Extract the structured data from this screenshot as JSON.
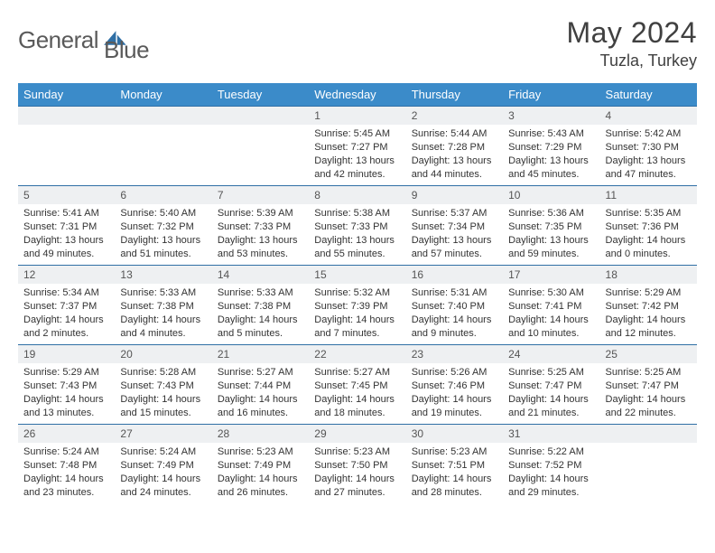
{
  "brand": {
    "part1": "General",
    "part2": "Blue"
  },
  "title": "May 2024",
  "location": "Tuzla, Turkey",
  "weekday_headers": [
    "Sunday",
    "Monday",
    "Tuesday",
    "Wednesday",
    "Thursday",
    "Friday",
    "Saturday"
  ],
  "colors": {
    "header_bg": "#3b8bc9",
    "header_text": "#ffffff",
    "daybar_bg": "#eef0f2",
    "daybar_border": "#2f6fa5",
    "logo_blue": "#2f6fa5"
  },
  "weeks": [
    [
      {
        "n": "",
        "sunrise": "",
        "sunset": "",
        "daylight": ""
      },
      {
        "n": "",
        "sunrise": "",
        "sunset": "",
        "daylight": ""
      },
      {
        "n": "",
        "sunrise": "",
        "sunset": "",
        "daylight": ""
      },
      {
        "n": "1",
        "sunrise": "Sunrise: 5:45 AM",
        "sunset": "Sunset: 7:27 PM",
        "daylight": "Daylight: 13 hours and 42 minutes."
      },
      {
        "n": "2",
        "sunrise": "Sunrise: 5:44 AM",
        "sunset": "Sunset: 7:28 PM",
        "daylight": "Daylight: 13 hours and 44 minutes."
      },
      {
        "n": "3",
        "sunrise": "Sunrise: 5:43 AM",
        "sunset": "Sunset: 7:29 PM",
        "daylight": "Daylight: 13 hours and 45 minutes."
      },
      {
        "n": "4",
        "sunrise": "Sunrise: 5:42 AM",
        "sunset": "Sunset: 7:30 PM",
        "daylight": "Daylight: 13 hours and 47 minutes."
      }
    ],
    [
      {
        "n": "5",
        "sunrise": "Sunrise: 5:41 AM",
        "sunset": "Sunset: 7:31 PM",
        "daylight": "Daylight: 13 hours and 49 minutes."
      },
      {
        "n": "6",
        "sunrise": "Sunrise: 5:40 AM",
        "sunset": "Sunset: 7:32 PM",
        "daylight": "Daylight: 13 hours and 51 minutes."
      },
      {
        "n": "7",
        "sunrise": "Sunrise: 5:39 AM",
        "sunset": "Sunset: 7:33 PM",
        "daylight": "Daylight: 13 hours and 53 minutes."
      },
      {
        "n": "8",
        "sunrise": "Sunrise: 5:38 AM",
        "sunset": "Sunset: 7:33 PM",
        "daylight": "Daylight: 13 hours and 55 minutes."
      },
      {
        "n": "9",
        "sunrise": "Sunrise: 5:37 AM",
        "sunset": "Sunset: 7:34 PM",
        "daylight": "Daylight: 13 hours and 57 minutes."
      },
      {
        "n": "10",
        "sunrise": "Sunrise: 5:36 AM",
        "sunset": "Sunset: 7:35 PM",
        "daylight": "Daylight: 13 hours and 59 minutes."
      },
      {
        "n": "11",
        "sunrise": "Sunrise: 5:35 AM",
        "sunset": "Sunset: 7:36 PM",
        "daylight": "Daylight: 14 hours and 0 minutes."
      }
    ],
    [
      {
        "n": "12",
        "sunrise": "Sunrise: 5:34 AM",
        "sunset": "Sunset: 7:37 PM",
        "daylight": "Daylight: 14 hours and 2 minutes."
      },
      {
        "n": "13",
        "sunrise": "Sunrise: 5:33 AM",
        "sunset": "Sunset: 7:38 PM",
        "daylight": "Daylight: 14 hours and 4 minutes."
      },
      {
        "n": "14",
        "sunrise": "Sunrise: 5:33 AM",
        "sunset": "Sunset: 7:38 PM",
        "daylight": "Daylight: 14 hours and 5 minutes."
      },
      {
        "n": "15",
        "sunrise": "Sunrise: 5:32 AM",
        "sunset": "Sunset: 7:39 PM",
        "daylight": "Daylight: 14 hours and 7 minutes."
      },
      {
        "n": "16",
        "sunrise": "Sunrise: 5:31 AM",
        "sunset": "Sunset: 7:40 PM",
        "daylight": "Daylight: 14 hours and 9 minutes."
      },
      {
        "n": "17",
        "sunrise": "Sunrise: 5:30 AM",
        "sunset": "Sunset: 7:41 PM",
        "daylight": "Daylight: 14 hours and 10 minutes."
      },
      {
        "n": "18",
        "sunrise": "Sunrise: 5:29 AM",
        "sunset": "Sunset: 7:42 PM",
        "daylight": "Daylight: 14 hours and 12 minutes."
      }
    ],
    [
      {
        "n": "19",
        "sunrise": "Sunrise: 5:29 AM",
        "sunset": "Sunset: 7:43 PM",
        "daylight": "Daylight: 14 hours and 13 minutes."
      },
      {
        "n": "20",
        "sunrise": "Sunrise: 5:28 AM",
        "sunset": "Sunset: 7:43 PM",
        "daylight": "Daylight: 14 hours and 15 minutes."
      },
      {
        "n": "21",
        "sunrise": "Sunrise: 5:27 AM",
        "sunset": "Sunset: 7:44 PM",
        "daylight": "Daylight: 14 hours and 16 minutes."
      },
      {
        "n": "22",
        "sunrise": "Sunrise: 5:27 AM",
        "sunset": "Sunset: 7:45 PM",
        "daylight": "Daylight: 14 hours and 18 minutes."
      },
      {
        "n": "23",
        "sunrise": "Sunrise: 5:26 AM",
        "sunset": "Sunset: 7:46 PM",
        "daylight": "Daylight: 14 hours and 19 minutes."
      },
      {
        "n": "24",
        "sunrise": "Sunrise: 5:25 AM",
        "sunset": "Sunset: 7:47 PM",
        "daylight": "Daylight: 14 hours and 21 minutes."
      },
      {
        "n": "25",
        "sunrise": "Sunrise: 5:25 AM",
        "sunset": "Sunset: 7:47 PM",
        "daylight": "Daylight: 14 hours and 22 minutes."
      }
    ],
    [
      {
        "n": "26",
        "sunrise": "Sunrise: 5:24 AM",
        "sunset": "Sunset: 7:48 PM",
        "daylight": "Daylight: 14 hours and 23 minutes."
      },
      {
        "n": "27",
        "sunrise": "Sunrise: 5:24 AM",
        "sunset": "Sunset: 7:49 PM",
        "daylight": "Daylight: 14 hours and 24 minutes."
      },
      {
        "n": "28",
        "sunrise": "Sunrise: 5:23 AM",
        "sunset": "Sunset: 7:49 PM",
        "daylight": "Daylight: 14 hours and 26 minutes."
      },
      {
        "n": "29",
        "sunrise": "Sunrise: 5:23 AM",
        "sunset": "Sunset: 7:50 PM",
        "daylight": "Daylight: 14 hours and 27 minutes."
      },
      {
        "n": "30",
        "sunrise": "Sunrise: 5:23 AM",
        "sunset": "Sunset: 7:51 PM",
        "daylight": "Daylight: 14 hours and 28 minutes."
      },
      {
        "n": "31",
        "sunrise": "Sunrise: 5:22 AM",
        "sunset": "Sunset: 7:52 PM",
        "daylight": "Daylight: 14 hours and 29 minutes."
      },
      {
        "n": "",
        "sunrise": "",
        "sunset": "",
        "daylight": ""
      }
    ]
  ]
}
